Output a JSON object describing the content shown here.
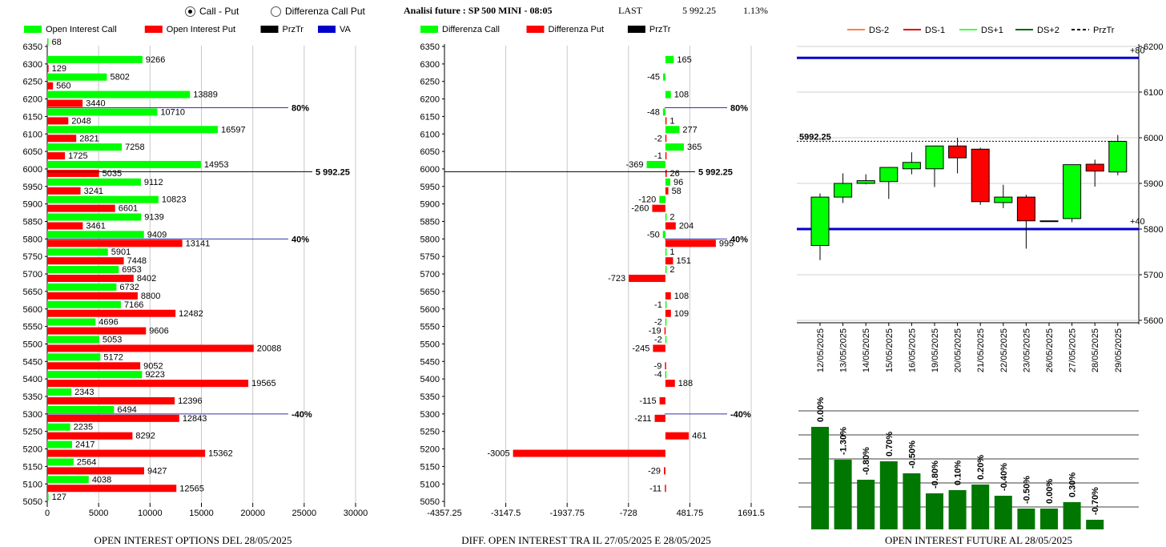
{
  "controls": {
    "radio_call_put": "Call - Put",
    "radio_diff": "Differenza Call Put"
  },
  "header": {
    "title": "Analisi future : SP 500 MINI - 08:05",
    "last_label": "LAST",
    "last_value": "5 992.25",
    "change": "1.13%"
  },
  "colors": {
    "green": "#00ff00",
    "red": "#ff0000",
    "blue": "#0000cc",
    "dark_green": "#007700"
  },
  "chart_data": [
    {
      "type": "bar",
      "orientation": "horizontal",
      "title": "OPEN INTEREST OPTIONS DEL 28/05/2025",
      "legend": [
        "Open Interest Call",
        "Open Interest Put",
        "PrzTr",
        "VA"
      ],
      "categories": [
        "6350",
        "6300",
        "6250",
        "6200",
        "6150",
        "6100",
        "6050",
        "6000",
        "5950",
        "5900",
        "5850",
        "5800",
        "5750",
        "5700",
        "5650",
        "5600",
        "5550",
        "5500",
        "5450",
        "5400",
        "5350",
        "5300",
        "5250",
        "5200",
        "5150",
        "5100",
        "5050"
      ],
      "series": [
        {
          "name": "Open Interest Call",
          "values": [
            68,
            9266,
            5802,
            13889,
            10710,
            16597,
            7258,
            14953,
            9112,
            10823,
            9139,
            9409,
            5901,
            6953,
            6732,
            7166,
            4696,
            5053,
            5172,
            9223,
            2343,
            6494,
            2235,
            2417,
            2564,
            4038,
            127
          ]
        },
        {
          "name": "Open Interest Put",
          "values": [
            null,
            129,
            560,
            3440,
            2048,
            2821,
            1725,
            5035,
            3241,
            6601,
            3461,
            13141,
            7448,
            8402,
            8800,
            12482,
            9606,
            20088,
            9052,
            19565,
            12396,
            12843,
            8292,
            15362,
            9427,
            12565,
            null
          ]
        }
      ],
      "xticks": [
        "0",
        "5000",
        "10000",
        "15000",
        "20000",
        "25000",
        "30000"
      ],
      "xlim": [
        0,
        30000
      ],
      "ref_lines": [
        {
          "label": "80%",
          "level": 6175
        },
        {
          "label": "5 992.25",
          "level": 5992.25
        },
        {
          "label": "40%",
          "level": 5800
        },
        {
          "label": "-40%",
          "level": 5300
        }
      ]
    },
    {
      "type": "bar",
      "orientation": "horizontal",
      "title": "DIFF. OPEN INTEREST TRA IL 27/05/2025 E 28/05/2025",
      "legend": [
        "Differenza Call",
        "Differenza Put",
        "PrzTr"
      ],
      "categories": [
        "6350",
        "6300",
        "6250",
        "6200",
        "6150",
        "6100",
        "6050",
        "6000",
        "5950",
        "5900",
        "5850",
        "5800",
        "5750",
        "5700",
        "5650",
        "5600",
        "5550",
        "5500",
        "5450",
        "5400",
        "5350",
        "5300",
        "5250",
        "5200",
        "5150",
        "5100",
        "5050"
      ],
      "series": [
        {
          "name": "Differenza Call",
          "values": [
            null,
            165,
            -45,
            108,
            -48,
            277,
            365,
            -369,
            96,
            -120,
            2,
            -50,
            1,
            2,
            null,
            -1,
            -2,
            -2,
            null,
            -4,
            null,
            null,
            null,
            null,
            null,
            null,
            null
          ]
        },
        {
          "name": "Differenza Put",
          "values": [
            null,
            null,
            null,
            null,
            1,
            -2,
            -1,
            26,
            58,
            -260,
            204,
            995,
            151,
            -723,
            108,
            109,
            -19,
            -245,
            -9,
            188,
            -115,
            -211,
            461,
            -3005,
            -29,
            -11,
            null
          ]
        }
      ],
      "xticks": [
        "-4357.25",
        "-3147.5",
        "-1937.75",
        "-728",
        "481.75",
        "1691.5"
      ],
      "xlim": [
        -4357.25,
        1691.5
      ],
      "ref_lines": [
        {
          "label": "80%",
          "level": 6175
        },
        {
          "label": "5 992.25",
          "level": 5992.25
        },
        {
          "label": "40%",
          "level": 5800
        },
        {
          "label": "-40%",
          "level": 5300
        }
      ]
    },
    {
      "type": "candlestick",
      "legend": [
        "DS-2",
        "DS-1",
        "DS+1",
        "DS+2",
        "PrzTr"
      ],
      "categories": [
        "12/05/2025",
        "13/05/2025",
        "14/05/2025",
        "15/05/2025",
        "16/05/2025",
        "19/05/2025",
        "20/05/2025",
        "21/05/2025",
        "22/05/2025",
        "23/05/2025",
        "26/05/2025",
        "27/05/2025",
        "28/05/2025",
        "29/05/2025"
      ],
      "ohlc": [
        {
          "o": 5764,
          "h": 5878,
          "l": 5732,
          "c": 5870
        },
        {
          "o": 5870,
          "h": 5922,
          "l": 5857,
          "c": 5900
        },
        {
          "o": 5900,
          "h": 5920,
          "l": 5898,
          "c": 5906
        },
        {
          "o": 5904,
          "h": 5936,
          "l": 5866,
          "c": 5935
        },
        {
          "o": 5932,
          "h": 5968,
          "l": 5920,
          "c": 5946
        },
        {
          "o": 5932,
          "h": 5983,
          "l": 5892,
          "c": 5982
        },
        {
          "o": 5982,
          "h": 6000,
          "l": 5922,
          "c": 5956
        },
        {
          "o": 5975,
          "h": 5978,
          "l": 5853,
          "c": 5860
        },
        {
          "o": 5858,
          "h": 5897,
          "l": 5846,
          "c": 5870
        },
        {
          "o": 5870,
          "h": 5875,
          "l": 5757,
          "c": 5818
        },
        {
          "o": 5818,
          "h": 5818,
          "l": 5818,
          "c": 5818
        },
        {
          "o": 5823,
          "h": 5942,
          "l": 5815,
          "c": 5941
        },
        {
          "o": 5942,
          "h": 5952,
          "l": 5893,
          "c": 5927
        },
        {
          "o": 5925,
          "h": 6006,
          "l": 5918,
          "c": 5992
        }
      ],
      "yticks": [
        "5600",
        "5700",
        "5800",
        "5900",
        "6000",
        "6100",
        "6200"
      ],
      "ylim": [
        5600,
        6200
      ],
      "ref_lines": [
        {
          "label": "+80",
          "level": 6175
        },
        {
          "label": "5992.25",
          "level": 5992.25
        },
        {
          "label": "+40",
          "level": 5800
        }
      ]
    },
    {
      "type": "bar",
      "title": "OPEN INTEREST FUTURE AL 28/05/2025",
      "categories": [
        "12/05/2025",
        "13/05/2025",
        "14/05/2025",
        "15/05/2025",
        "16/05/2025",
        "19/05/2025",
        "20/05/2025",
        "21/05/2025",
        "22/05/2025",
        "23/05/2025",
        "26/05/2025",
        "27/05/2025",
        "28/05/2025",
        "29/05/2025"
      ],
      "values": [
        128,
        87,
        62,
        85,
        70,
        45,
        49,
        56,
        42,
        26,
        26,
        34,
        12
      ],
      "labels": [
        "0.00%",
        "-1.30%",
        "-0.80%",
        "0.70%",
        "-0.50%",
        "-0.80%",
        "0.10%",
        "0.20%",
        "-0.40%",
        "-0.50%",
        "0.00%",
        "0.30%",
        "-0.70%"
      ]
    }
  ]
}
